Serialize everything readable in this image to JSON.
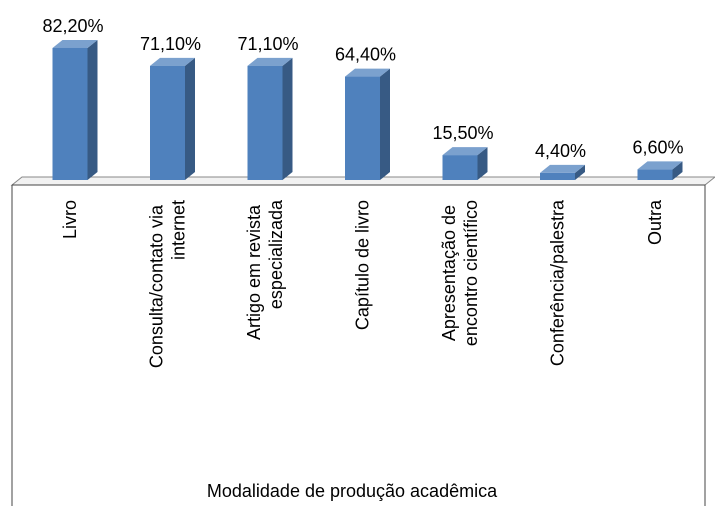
{
  "chart_data": {
    "type": "bar3d",
    "categories": [
      "Livro",
      "Consulta/contato via internet",
      "Artigo em revista especializada",
      "Capítulo de livro",
      "Apresentação de encontro científico",
      "Conferência/palestra",
      "Outra"
    ],
    "values": [
      82.2,
      71.1,
      71.1,
      64.4,
      15.5,
      4.4,
      6.6
    ],
    "value_labels": [
      "82,20%",
      "71,10%",
      "71,10%",
      "64,40%",
      "15,50%",
      "4,40%",
      "6,60%"
    ],
    "x_label": "Modalidade de produção acadêmica",
    "color": "#4f81bd"
  }
}
